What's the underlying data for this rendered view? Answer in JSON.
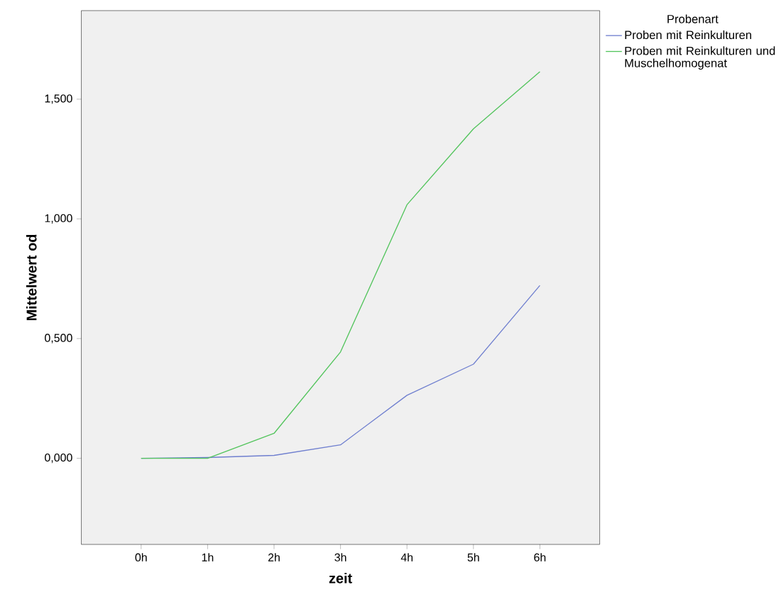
{
  "chart_data": {
    "type": "line",
    "xlabel": "zeit",
    "ylabel": "Mittelwert od",
    "legend_title": "Probenart",
    "categories": [
      "0h",
      "1h",
      "2h",
      "3h",
      "4h",
      "5h",
      "6h"
    ],
    "series": [
      {
        "name": "Proben mit Reinkulturen",
        "color": "#6f7fcf",
        "values": [
          0.0,
          0.003,
          0.012,
          0.056,
          0.263,
          0.393,
          0.722
        ]
      },
      {
        "name": "Proben mit Reinkulturen und Muschelhomogenat",
        "color": "#52c45c",
        "values": [
          0.0,
          0.0,
          0.104,
          0.444,
          1.059,
          1.376,
          1.615
        ]
      }
    ],
    "ylim": [
      -0.36,
      1.87
    ],
    "yticks": [
      {
        "value": 0,
        "label": "0,000"
      },
      {
        "value": 0.5,
        "label": "0,500"
      },
      {
        "value": 1.0,
        "label": "1,000"
      },
      {
        "value": 1.5,
        "label": "1,500"
      }
    ],
    "grid": false,
    "legend": "top right",
    "marker": "none",
    "line_style": "solid"
  }
}
